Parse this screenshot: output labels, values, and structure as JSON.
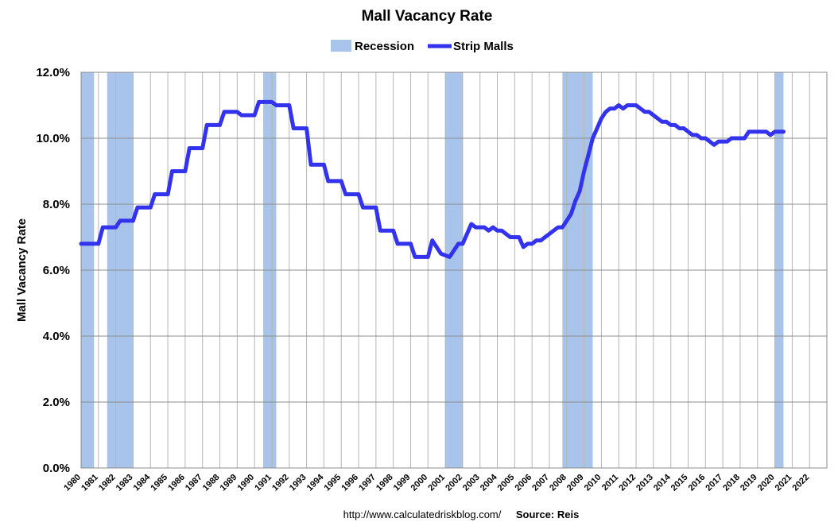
{
  "chart_data": {
    "type": "line",
    "title": "Mall Vacancy Rate",
    "ylabel": "Mall Vacancy Rate",
    "xlabel": "",
    "xlim": [
      1980,
      2023
    ],
    "ylim": [
      0,
      12
    ],
    "y_ticks": [
      "0.0%",
      "2.0%",
      "4.0%",
      "6.0%",
      "8.0%",
      "10.0%",
      "12.0%"
    ],
    "x_ticks": [
      "1980",
      "1981",
      "1982",
      "1983",
      "1984",
      "1985",
      "1986",
      "1987",
      "1988",
      "1989",
      "1990",
      "1991",
      "1992",
      "1993",
      "1994",
      "1995",
      "1996",
      "1997",
      "1998",
      "1999",
      "2000",
      "2001",
      "2002",
      "2003",
      "2004",
      "2005",
      "2006",
      "2007",
      "2008",
      "2009",
      "2010",
      "2011",
      "2012",
      "2013",
      "2014",
      "2015",
      "2016",
      "2017",
      "2018",
      "2019",
      "2020",
      "2021",
      "2022"
    ],
    "grid": true,
    "legend": {
      "placement": "top-center",
      "entries": [
        {
          "name": "Recession",
          "color": "#a9c4eb"
        },
        {
          "name": "Strip Malls",
          "color": "#3333ee"
        }
      ]
    },
    "recessions": [
      [
        1980.0,
        1980.75
      ],
      [
        1981.5,
        1983.0
      ],
      [
        1990.5,
        1991.25
      ],
      [
        2001.0,
        2002.0
      ],
      [
        2007.75,
        2009.5
      ],
      [
        2020.0,
        2020.5
      ]
    ],
    "series": [
      {
        "name": "Strip Malls",
        "color": "#3333ee",
        "x": [
          1980,
          1981,
          1981.25,
          1982,
          1982.25,
          1983,
          1983.25,
          1984,
          1984.25,
          1985,
          1985.25,
          1986,
          1986.25,
          1987,
          1987.25,
          1988,
          1988.25,
          1989,
          1989.25,
          1990,
          1990.25,
          1991,
          1991.25,
          1992,
          1992.25,
          1993,
          1993.25,
          1994,
          1994.25,
          1995,
          1995.25,
          1996,
          1996.25,
          1997,
          1997.25,
          1998,
          1998.25,
          1999,
          1999.25,
          2000,
          2000.25,
          2000.75,
          2001.25,
          2001.75,
          2002,
          2002.25,
          2002.5,
          2002.75,
          2003,
          2003.25,
          2003.5,
          2003.75,
          2004,
          2004.25,
          2004.5,
          2004.75,
          2005,
          2005.25,
          2005.5,
          2005.75,
          2006,
          2006.25,
          2006.5,
          2006.75,
          2007,
          2007.25,
          2007.5,
          2007.75,
          2008,
          2008.25,
          2008.5,
          2008.75,
          2009,
          2009.25,
          2009.5,
          2009.75,
          2010,
          2010.25,
          2010.5,
          2010.75,
          2011,
          2011.25,
          2011.5,
          2011.75,
          2012,
          2012.25,
          2012.5,
          2012.75,
          2013,
          2013.25,
          2013.5,
          2013.75,
          2014,
          2014.25,
          2014.5,
          2014.75,
          2015,
          2015.25,
          2015.5,
          2015.75,
          2016,
          2016.25,
          2016.5,
          2016.75,
          2017,
          2017.25,
          2017.5,
          2017.75,
          2018,
          2018.25,
          2018.5,
          2018.75,
          2019,
          2019.25,
          2019.5,
          2019.75,
          2020,
          2020.25,
          2020.5
        ],
        "values": [
          6.8,
          6.8,
          7.3,
          7.3,
          7.5,
          7.5,
          7.9,
          7.9,
          8.3,
          8.3,
          9.0,
          9.0,
          9.7,
          9.7,
          10.4,
          10.4,
          10.8,
          10.8,
          10.7,
          10.7,
          11.1,
          11.1,
          11.0,
          11.0,
          10.3,
          10.3,
          9.2,
          9.2,
          8.7,
          8.7,
          8.3,
          8.3,
          7.9,
          7.9,
          7.2,
          7.2,
          6.8,
          6.8,
          6.4,
          6.4,
          6.9,
          6.5,
          6.4,
          6.8,
          6.8,
          7.1,
          7.4,
          7.3,
          7.3,
          7.3,
          7.2,
          7.3,
          7.2,
          7.2,
          7.1,
          7.0,
          7.0,
          7.0,
          6.7,
          6.8,
          6.8,
          6.9,
          6.9,
          7.0,
          7.1,
          7.2,
          7.3,
          7.3,
          7.5,
          7.7,
          8.1,
          8.4,
          9.0,
          9.5,
          10.0,
          10.3,
          10.6,
          10.8,
          10.9,
          10.9,
          11.0,
          10.9,
          11.0,
          11.0,
          11.0,
          10.9,
          10.8,
          10.8,
          10.7,
          10.6,
          10.5,
          10.5,
          10.4,
          10.4,
          10.3,
          10.3,
          10.2,
          10.1,
          10.1,
          10.0,
          10.0,
          9.9,
          9.8,
          9.9,
          9.9,
          9.9,
          10.0,
          10.0,
          10.0,
          10.0,
          10.2,
          10.2,
          10.2,
          10.2,
          10.2,
          10.1,
          10.2,
          10.2,
          10.2
        ]
      }
    ]
  },
  "footer": {
    "url": "http://www.calculatedriskblog.com/",
    "source": "Source: Reis"
  }
}
